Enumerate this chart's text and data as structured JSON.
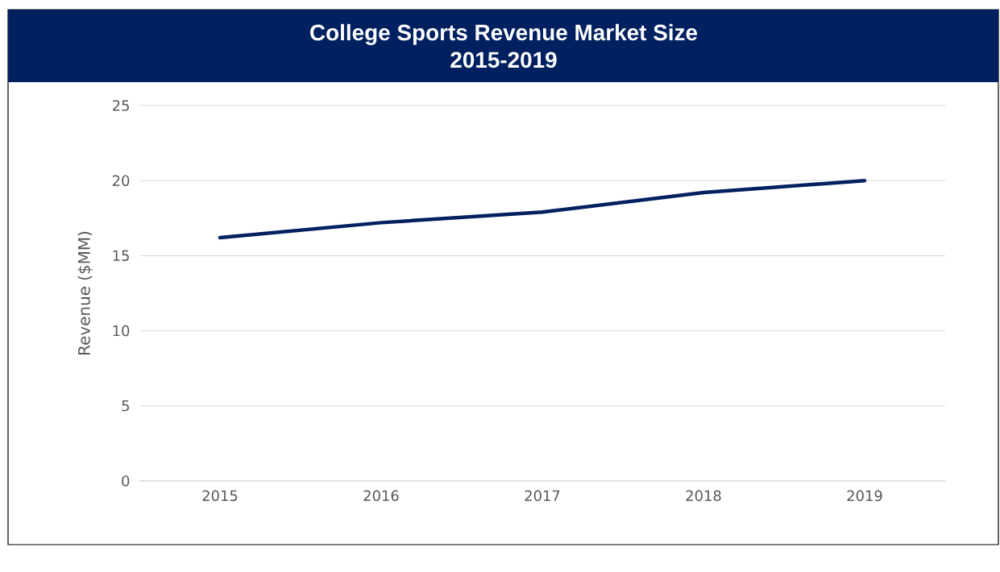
{
  "chart_data": {
    "type": "line",
    "title": "College Sports Revenue Market Size",
    "subtitle": "2015-2019",
    "ylabel": "Revenue ($MM)",
    "categories": [
      "2015",
      "2016",
      "2017",
      "2018",
      "2019"
    ],
    "series": [
      {
        "color": "#002060",
        "values": [
          16.2,
          17.2,
          17.9,
          19.2,
          20.0
        ]
      }
    ],
    "ylim": [
      0,
      25
    ],
    "yticks": [
      0,
      5,
      10,
      15,
      20,
      25
    ],
    "grid": "y",
    "marker": "none",
    "line_style": "solid"
  }
}
